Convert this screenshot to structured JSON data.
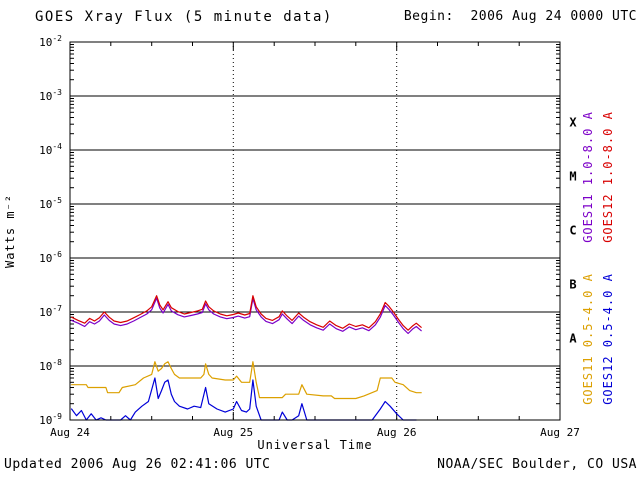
{
  "title": "GOES Xray Flux (5 minute data)",
  "begin_label": "Begin:  2006 Aug 24 0000 UTC",
  "footer": {
    "updated": "Updated 2006 Aug 26 02:41:06 UTC",
    "credit": "NOAA/SEC Boulder, CO USA"
  },
  "colors": {
    "background": "#ffffff",
    "frame": "#000000",
    "grid": "#000000"
  },
  "chart_data": {
    "type": "line",
    "title": "GOES Xray Flux (5 minute data)",
    "xlabel": "Universal Time",
    "ylabel": "Watts m⁻²",
    "x_unit": "days since 2006 Aug 24 0000 UTC",
    "xlim": [
      0,
      3
    ],
    "ylim": [
      1e-09,
      0.01
    ],
    "y_scale": "log",
    "grid": "solid horizontal decades, dotted vertical days",
    "legend_position": "right-rotated",
    "x_ticks": [
      {
        "value": 0,
        "label": "Aug 24"
      },
      {
        "value": 1,
        "label": "Aug 25"
      },
      {
        "value": 2,
        "label": "Aug 26"
      },
      {
        "value": 3,
        "label": "Aug 27"
      }
    ],
    "y_ticks": [
      {
        "value": 0.01,
        "exp": "-2"
      },
      {
        "value": 0.001,
        "exp": "-3"
      },
      {
        "value": 0.0001,
        "exp": "-4"
      },
      {
        "value": 1e-05,
        "exp": "-5"
      },
      {
        "value": 1e-06,
        "exp": "-6"
      },
      {
        "value": 1e-07,
        "exp": "-7"
      },
      {
        "value": 1e-08,
        "exp": "-8"
      },
      {
        "value": 1e-09,
        "exp": "-9"
      }
    ],
    "flare_classes": [
      {
        "label": "X",
        "value": 0.00032
      },
      {
        "label": "M",
        "value": 3.2e-05
      },
      {
        "label": "C",
        "value": 3.2e-06
      },
      {
        "label": "B",
        "value": 3.2e-07
      },
      {
        "label": "A",
        "value": 3.2e-08
      }
    ],
    "series": [
      {
        "name": "GOES11 1.0-8.0 A",
        "color": "#7c00c8",
        "points": [
          [
            0.01,
            7e-08
          ],
          [
            0.05,
            6.2e-08
          ],
          [
            0.09,
            5.4e-08
          ],
          [
            0.12,
            6.6e-08
          ],
          [
            0.15,
            6e-08
          ],
          [
            0.18,
            6.8e-08
          ],
          [
            0.21,
            8.8e-08
          ],
          [
            0.24,
            7e-08
          ],
          [
            0.27,
            6e-08
          ],
          [
            0.31,
            5.6e-08
          ],
          [
            0.35,
            6e-08
          ],
          [
            0.39,
            6.8e-08
          ],
          [
            0.43,
            7.9e-08
          ],
          [
            0.47,
            9.2e-08
          ],
          [
            0.5,
            1.1e-07
          ],
          [
            0.53,
            1.8e-07
          ],
          [
            0.55,
            1.18e-07
          ],
          [
            0.57,
            9.6e-08
          ],
          [
            0.6,
            1.38e-07
          ],
          [
            0.62,
            1.05e-07
          ],
          [
            0.66,
            8.9e-08
          ],
          [
            0.7,
            8.1e-08
          ],
          [
            0.74,
            8.6e-08
          ],
          [
            0.78,
            9.2e-08
          ],
          [
            0.81,
            9.8e-08
          ],
          [
            0.83,
            1.42e-07
          ],
          [
            0.85,
            1.1e-07
          ],
          [
            0.88,
            9.2e-08
          ],
          [
            0.92,
            8.1e-08
          ],
          [
            0.96,
            7.5e-08
          ],
          [
            1.0,
            7.9e-08
          ],
          [
            1.03,
            8.4e-08
          ],
          [
            1.07,
            7.7e-08
          ],
          [
            1.1,
            8.2e-08
          ],
          [
            1.12,
            1.78e-07
          ],
          [
            1.14,
            1.1e-07
          ],
          [
            1.17,
            8.1e-08
          ],
          [
            1.2,
            6.7e-08
          ],
          [
            1.24,
            6.1e-08
          ],
          [
            1.28,
            7.2e-08
          ],
          [
            1.3,
            9.2e-08
          ],
          [
            1.33,
            7.4e-08
          ],
          [
            1.36,
            6.1e-08
          ],
          [
            1.4,
            8.4e-08
          ],
          [
            1.43,
            7e-08
          ],
          [
            1.47,
            5.8e-08
          ],
          [
            1.51,
            5.1e-08
          ],
          [
            1.55,
            4.6e-08
          ],
          [
            1.59,
            6e-08
          ],
          [
            1.63,
            4.9e-08
          ],
          [
            1.67,
            4.4e-08
          ],
          [
            1.71,
            5.3e-08
          ],
          [
            1.75,
            4.7e-08
          ],
          [
            1.79,
            5.1e-08
          ],
          [
            1.83,
            4.5e-08
          ],
          [
            1.87,
            5.8e-08
          ],
          [
            1.9,
            8e-08
          ],
          [
            1.93,
            1.32e-07
          ],
          [
            1.95,
            1.14e-07
          ],
          [
            1.98,
            8.8e-08
          ],
          [
            2.01,
            6.5e-08
          ],
          [
            2.04,
            4.9e-08
          ],
          [
            2.07,
            4e-08
          ],
          [
            2.1,
            4.9e-08
          ],
          [
            2.12,
            5.4e-08
          ],
          [
            2.15,
            4.5e-08
          ]
        ]
      },
      {
        "name": "GOES12 1.0-8.0 A",
        "color": "#d80000",
        "points": [
          [
            0.01,
            8e-08
          ],
          [
            0.05,
            7e-08
          ],
          [
            0.09,
            6.2e-08
          ],
          [
            0.12,
            7.6e-08
          ],
          [
            0.15,
            6.8e-08
          ],
          [
            0.18,
            7.8e-08
          ],
          [
            0.21,
            1e-07
          ],
          [
            0.24,
            8e-08
          ],
          [
            0.27,
            6.8e-08
          ],
          [
            0.31,
            6.4e-08
          ],
          [
            0.35,
            6.8e-08
          ],
          [
            0.39,
            7.8e-08
          ],
          [
            0.43,
            9e-08
          ],
          [
            0.47,
            1.05e-07
          ],
          [
            0.5,
            1.25e-07
          ],
          [
            0.53,
            2e-07
          ],
          [
            0.55,
            1.35e-07
          ],
          [
            0.57,
            1.1e-07
          ],
          [
            0.6,
            1.55e-07
          ],
          [
            0.62,
            1.2e-07
          ],
          [
            0.66,
            1.02e-07
          ],
          [
            0.7,
            9.2e-08
          ],
          [
            0.74,
            9.8e-08
          ],
          [
            0.78,
            1.05e-07
          ],
          [
            0.81,
            1.12e-07
          ],
          [
            0.83,
            1.6e-07
          ],
          [
            0.85,
            1.25e-07
          ],
          [
            0.88,
            1.05e-07
          ],
          [
            0.92,
            9.2e-08
          ],
          [
            0.96,
            8.5e-08
          ],
          [
            1.0,
            9e-08
          ],
          [
            1.03,
            9.6e-08
          ],
          [
            1.07,
            8.8e-08
          ],
          [
            1.1,
            9.4e-08
          ],
          [
            1.12,
            2e-07
          ],
          [
            1.14,
            1.25e-07
          ],
          [
            1.17,
            9.2e-08
          ],
          [
            1.2,
            7.6e-08
          ],
          [
            1.24,
            7e-08
          ],
          [
            1.28,
            8.2e-08
          ],
          [
            1.3,
            1.05e-07
          ],
          [
            1.33,
            8.4e-08
          ],
          [
            1.36,
            7e-08
          ],
          [
            1.4,
            9.6e-08
          ],
          [
            1.43,
            8e-08
          ],
          [
            1.47,
            6.6e-08
          ],
          [
            1.51,
            5.8e-08
          ],
          [
            1.55,
            5.2e-08
          ],
          [
            1.59,
            6.8e-08
          ],
          [
            1.63,
            5.6e-08
          ],
          [
            1.67,
            5e-08
          ],
          [
            1.71,
            6e-08
          ],
          [
            1.75,
            5.4e-08
          ],
          [
            1.79,
            5.8e-08
          ],
          [
            1.83,
            5.1e-08
          ],
          [
            1.87,
            6.6e-08
          ],
          [
            1.9,
            9.2e-08
          ],
          [
            1.93,
            1.5e-07
          ],
          [
            1.95,
            1.3e-07
          ],
          [
            1.98,
            1e-07
          ],
          [
            2.01,
            7.4e-08
          ],
          [
            2.04,
            5.6e-08
          ],
          [
            2.07,
            4.6e-08
          ],
          [
            2.1,
            5.6e-08
          ],
          [
            2.12,
            6.2e-08
          ],
          [
            2.15,
            5.2e-08
          ]
        ]
      },
      {
        "name": "GOES11 0.5-4.0 A",
        "color": "#dca000",
        "points": [
          [
            0.01,
            4.5e-09
          ],
          [
            0.1,
            4.5e-09
          ],
          [
            0.11,
            4e-09
          ],
          [
            0.22,
            4e-09
          ],
          [
            0.23,
            3.2e-09
          ],
          [
            0.3,
            3.2e-09
          ],
          [
            0.32,
            4e-09
          ],
          [
            0.4,
            4.5e-09
          ],
          [
            0.45,
            6e-09
          ],
          [
            0.5,
            7e-09
          ],
          [
            0.52,
            1.2e-08
          ],
          [
            0.54,
            8e-09
          ],
          [
            0.56,
            9e-09
          ],
          [
            0.58,
            1.1e-08
          ],
          [
            0.6,
            1.2e-08
          ],
          [
            0.62,
            9e-09
          ],
          [
            0.64,
            7e-09
          ],
          [
            0.67,
            6e-09
          ],
          [
            0.8,
            6e-09
          ],
          [
            0.82,
            7e-09
          ],
          [
            0.83,
            1.1e-08
          ],
          [
            0.85,
            7e-09
          ],
          [
            0.87,
            6e-09
          ],
          [
            0.95,
            5.5e-09
          ],
          [
            1.0,
            5.5e-09
          ],
          [
            1.02,
            6.5e-09
          ],
          [
            1.05,
            5e-09
          ],
          [
            1.1,
            5e-09
          ],
          [
            1.12,
            1.2e-08
          ],
          [
            1.14,
            5e-09
          ],
          [
            1.16,
            2.6e-09
          ],
          [
            1.3,
            2.6e-09
          ],
          [
            1.32,
            3e-09
          ],
          [
            1.4,
            3e-09
          ],
          [
            1.42,
            4.5e-09
          ],
          [
            1.45,
            3e-09
          ],
          [
            1.55,
            2.8e-09
          ],
          [
            1.6,
            2.8e-09
          ],
          [
            1.62,
            2.5e-09
          ],
          [
            1.75,
            2.5e-09
          ],
          [
            1.8,
            2.8e-09
          ],
          [
            1.88,
            3.5e-09
          ],
          [
            1.9,
            6e-09
          ],
          [
            1.97,
            6e-09
          ],
          [
            1.99,
            5e-09
          ],
          [
            2.04,
            4.5e-09
          ],
          [
            2.08,
            3.5e-09
          ],
          [
            2.12,
            3.2e-09
          ],
          [
            2.15,
            3.2e-09
          ]
        ]
      },
      {
        "name": "GOES12 0.5-4.0 A",
        "color": "#0000d8",
        "points": [
          [
            0.01,
            1.6e-09
          ],
          [
            0.04,
            1.2e-09
          ],
          [
            0.07,
            1.5e-09
          ],
          [
            0.1,
            1e-09
          ],
          [
            0.13,
            1.3e-09
          ],
          [
            0.16,
            9e-10
          ],
          [
            0.19,
            1.1e-09
          ],
          [
            0.22,
            8.5e-10
          ],
          [
            0.25,
            1e-09
          ],
          [
            0.28,
            8e-10
          ],
          [
            0.31,
            1e-09
          ],
          [
            0.34,
            1.2e-09
          ],
          [
            0.37,
            1e-09
          ],
          [
            0.4,
            1.4e-09
          ],
          [
            0.44,
            1.8e-09
          ],
          [
            0.48,
            2.2e-09
          ],
          [
            0.52,
            6e-09
          ],
          [
            0.54,
            2.5e-09
          ],
          [
            0.56,
            3.5e-09
          ],
          [
            0.58,
            5e-09
          ],
          [
            0.6,
            5.5e-09
          ],
          [
            0.62,
            3e-09
          ],
          [
            0.64,
            2.2e-09
          ],
          [
            0.67,
            1.8e-09
          ],
          [
            0.72,
            1.6e-09
          ],
          [
            0.76,
            1.8e-09
          ],
          [
            0.8,
            1.7e-09
          ],
          [
            0.83,
            4e-09
          ],
          [
            0.85,
            2e-09
          ],
          [
            0.9,
            1.6e-09
          ],
          [
            0.95,
            1.4e-09
          ],
          [
            1.0,
            1.6e-09
          ],
          [
            1.02,
            2.2e-09
          ],
          [
            1.05,
            1.5e-09
          ],
          [
            1.08,
            1.4e-09
          ],
          [
            1.1,
            1.6e-09
          ],
          [
            1.12,
            5.5e-09
          ],
          [
            1.14,
            1.8e-09
          ],
          [
            1.17,
            1e-09
          ],
          [
            1.2,
            8e-10
          ],
          [
            1.24,
            9e-10
          ],
          [
            1.28,
            7.5e-10
          ],
          [
            1.3,
            1.4e-09
          ],
          [
            1.33,
            8e-10
          ],
          [
            1.36,
            7e-10
          ],
          [
            1.4,
            1.2e-09
          ],
          [
            1.42,
            2e-09
          ],
          [
            1.45,
            9e-10
          ],
          [
            1.5,
            7.5e-10
          ],
          [
            1.55,
            8.5e-10
          ],
          [
            1.6,
            7e-10
          ],
          [
            1.65,
            8e-10
          ],
          [
            1.7,
            7.5e-10
          ],
          [
            1.75,
            8.5e-10
          ],
          [
            1.8,
            8e-10
          ],
          [
            1.85,
            9e-10
          ],
          [
            1.9,
            1.6e-09
          ],
          [
            1.93,
            2.2e-09
          ],
          [
            1.96,
            1.8e-09
          ],
          [
            2.0,
            1.3e-09
          ],
          [
            2.04,
            9e-10
          ],
          [
            2.08,
            7e-10
          ],
          [
            2.1,
            8e-10
          ],
          [
            2.12,
            7.5e-10
          ]
        ]
      }
    ]
  }
}
